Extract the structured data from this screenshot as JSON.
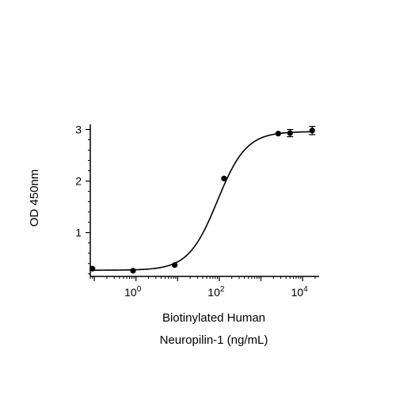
{
  "chart_data": {
    "type": "scatter",
    "title": "",
    "xlabel_lines": [
      "Biotinylated Human",
      "Neuropilin-1 (ng/mL)"
    ],
    "ylabel": "OD 450nm",
    "x_scale": "log10",
    "xlim": [
      0.08,
      25000
    ],
    "ylim": [
      0.15,
      3.1
    ],
    "x_ticks": [
      {
        "value": 1,
        "base": "10",
        "exp": "0"
      },
      {
        "value": 100,
        "base": "10",
        "exp": "2"
      },
      {
        "value": 10000,
        "base": "10",
        "exp": "4"
      }
    ],
    "y_ticks": [
      1,
      2,
      3
    ],
    "grid": false,
    "legend": "none",
    "points": [
      {
        "x": 0.09,
        "y": 0.3,
        "err": 0
      },
      {
        "x": 0.85,
        "y": 0.26,
        "err": 0
      },
      {
        "x": 8.5,
        "y": 0.37,
        "err": 0
      },
      {
        "x": 130,
        "y": 2.05,
        "err": 0
      },
      {
        "x": 2600,
        "y": 2.92,
        "err": 0
      },
      {
        "x": 5000,
        "y": 2.93,
        "err": 0.07
      },
      {
        "x": 17000,
        "y": 2.98,
        "err": 0.08
      }
    ],
    "fit": {
      "model": "4PL",
      "bottom": 0.27,
      "top": 2.96,
      "ec50": 90,
      "hill": 1.25
    }
  }
}
